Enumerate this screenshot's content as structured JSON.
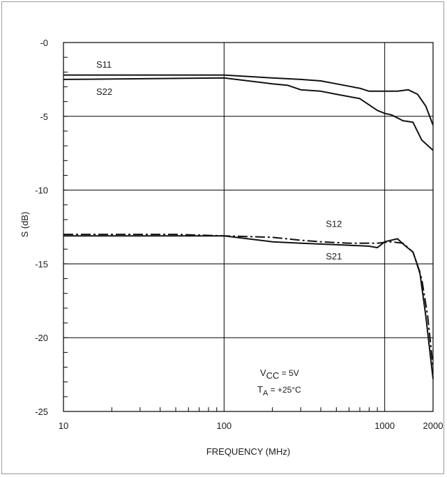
{
  "chart_data": {
    "type": "line",
    "title": "",
    "xlabel": "FREQUENCY (MHz)",
    "ylabel": "S (dB)",
    "x_scale": "log",
    "xlim": [
      10,
      2000
    ],
    "ylim": [
      -25,
      0
    ],
    "grid": true,
    "x_ticks": [
      10,
      100,
      1000,
      2000
    ],
    "x_tick_labels": [
      "10",
      "100",
      "1000",
      "2000"
    ],
    "y_ticks": [
      0,
      -5,
      -10,
      -15,
      -20,
      -25
    ],
    "y_tick_labels": [
      "-0",
      "-5",
      "-10",
      "-15",
      "-20",
      "-25"
    ],
    "series": [
      {
        "name": "S11",
        "style": "solid",
        "points": [
          [
            10,
            -2.2
          ],
          [
            100,
            -2.2
          ],
          [
            200,
            -2.4
          ],
          [
            300,
            -2.5
          ],
          [
            400,
            -2.6
          ],
          [
            500,
            -2.8
          ],
          [
            700,
            -3.1
          ],
          [
            800,
            -3.3
          ],
          [
            1000,
            -3.3
          ],
          [
            1200,
            -3.3
          ],
          [
            1400,
            -3.2
          ],
          [
            1600,
            -3.5
          ],
          [
            1800,
            -4.3
          ],
          [
            2000,
            -5.6
          ]
        ]
      },
      {
        "name": "S22",
        "style": "solid",
        "points": [
          [
            10,
            -2.5
          ],
          [
            100,
            -2.4
          ],
          [
            200,
            -2.8
          ],
          [
            250,
            -2.9
          ],
          [
            300,
            -3.2
          ],
          [
            400,
            -3.3
          ],
          [
            500,
            -3.5
          ],
          [
            700,
            -3.8
          ],
          [
            900,
            -4.6
          ],
          [
            1000,
            -4.8
          ],
          [
            1100,
            -4.9
          ],
          [
            1300,
            -5.3
          ],
          [
            1500,
            -5.4
          ],
          [
            1700,
            -6.6
          ],
          [
            2000,
            -7.3
          ]
        ]
      },
      {
        "name": "S12",
        "style": "dash-dot",
        "points": [
          [
            10,
            -13.0
          ],
          [
            50,
            -13.0
          ],
          [
            100,
            -13.1
          ],
          [
            200,
            -13.2
          ],
          [
            300,
            -13.4
          ],
          [
            400,
            -13.5
          ],
          [
            600,
            -13.6
          ],
          [
            900,
            -13.6
          ],
          [
            1100,
            -13.5
          ],
          [
            1300,
            -13.6
          ],
          [
            1500,
            -14.2
          ],
          [
            1700,
            -16.0
          ],
          [
            1850,
            -18.5
          ],
          [
            2000,
            -22.0
          ]
        ]
      },
      {
        "name": "S21",
        "style": "solid",
        "points": [
          [
            10,
            -13.1
          ],
          [
            100,
            -13.1
          ],
          [
            200,
            -13.5
          ],
          [
            300,
            -13.6
          ],
          [
            500,
            -13.7
          ],
          [
            800,
            -13.8
          ],
          [
            900,
            -13.9
          ],
          [
            1000,
            -13.5
          ],
          [
            1200,
            -13.3
          ],
          [
            1350,
            -13.8
          ],
          [
            1500,
            -14.2
          ],
          [
            1650,
            -15.5
          ],
          [
            1800,
            -18.5
          ],
          [
            2000,
            -22.8
          ]
        ]
      }
    ],
    "curve_labels": [
      "S11",
      "S22",
      "S12",
      "S21"
    ],
    "annotation": {
      "line1_main": "V",
      "line1_sub": "CC",
      "line1_rest": " = 5V",
      "line2_main": "T",
      "line2_sub": "A",
      "line2_rest": " = +25°C"
    }
  }
}
